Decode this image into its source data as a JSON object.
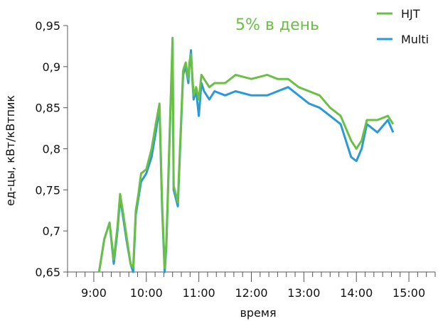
{
  "chart_data": {
    "type": "line",
    "annotation": "5% в день",
    "xlabel": "время",
    "ylabel": "ед-цы, кВт/кВтпик",
    "ylim": [
      0.65,
      0.95
    ],
    "xlim": [
      8.5,
      15.5
    ],
    "yticks": [
      {
        "value": 0.95,
        "label": "0,95"
      },
      {
        "value": 0.9,
        "label": "0,9"
      },
      {
        "value": 0.85,
        "label": "0,85"
      },
      {
        "value": 0.8,
        "label": "0,8"
      },
      {
        "value": 0.75,
        "label": "0,75"
      },
      {
        "value": 0.7,
        "label": "0,7"
      },
      {
        "value": 0.65,
        "label": "0,65"
      }
    ],
    "xticks": [
      {
        "value": 9,
        "label": "9:00"
      },
      {
        "value": 10,
        "label": "10:00"
      },
      {
        "value": 11,
        "label": "11:00"
      },
      {
        "value": 12,
        "label": "12:00"
      },
      {
        "value": 13,
        "label": "13:00"
      },
      {
        "value": 14,
        "label": "14:00"
      },
      {
        "value": 15,
        "label": "15:00"
      }
    ],
    "legend_position": "top-right",
    "series": [
      {
        "name": "Multi",
        "color": "#2a9ad6",
        "x": [
          9.1,
          9.2,
          9.3,
          9.38,
          9.45,
          9.5,
          9.55,
          9.62,
          9.7,
          9.75,
          9.8,
          9.85,
          9.9,
          10.0,
          10.1,
          10.18,
          10.25,
          10.3,
          10.35,
          10.38,
          10.5,
          10.52,
          10.6,
          10.7,
          10.75,
          10.8,
          10.82,
          10.85,
          10.88,
          10.9,
          10.95,
          11.0,
          11.05,
          11.1,
          11.2,
          11.3,
          11.5,
          11.7,
          12.0,
          12.3,
          12.5,
          12.7,
          12.9,
          13.1,
          13.3,
          13.5,
          13.7,
          13.9,
          14.0,
          14.1,
          14.2,
          14.4,
          14.6,
          14.7
        ],
        "y": [
          0.65,
          0.69,
          0.71,
          0.66,
          0.7,
          0.74,
          0.72,
          0.69,
          0.66,
          0.65,
          0.72,
          0.74,
          0.76,
          0.77,
          0.79,
          0.82,
          0.85,
          0.73,
          0.65,
          0.68,
          0.93,
          0.75,
          0.73,
          0.89,
          0.9,
          0.88,
          0.9,
          0.92,
          0.88,
          0.86,
          0.87,
          0.84,
          0.88,
          0.87,
          0.86,
          0.87,
          0.865,
          0.87,
          0.865,
          0.865,
          0.87,
          0.875,
          0.865,
          0.855,
          0.85,
          0.84,
          0.83,
          0.79,
          0.785,
          0.8,
          0.83,
          0.82,
          0.835,
          0.82
        ]
      },
      {
        "name": "HJT",
        "color": "#6abf45",
        "x": [
          9.1,
          9.2,
          9.3,
          9.38,
          9.45,
          9.5,
          9.55,
          9.62,
          9.7,
          9.75,
          9.8,
          9.85,
          9.9,
          10.0,
          10.1,
          10.18,
          10.25,
          10.3,
          10.35,
          10.38,
          10.5,
          10.52,
          10.6,
          10.7,
          10.75,
          10.8,
          10.82,
          10.85,
          10.88,
          10.9,
          10.95,
          11.0,
          11.05,
          11.1,
          11.2,
          11.3,
          11.5,
          11.7,
          12.0,
          12.3,
          12.5,
          12.7,
          12.9,
          13.1,
          13.3,
          13.5,
          13.7,
          13.9,
          14.0,
          14.1,
          14.2,
          14.4,
          14.6,
          14.7
        ],
        "y": [
          0.65,
          0.69,
          0.71,
          0.665,
          0.705,
          0.745,
          0.725,
          0.695,
          0.66,
          0.655,
          0.725,
          0.745,
          0.77,
          0.775,
          0.8,
          0.83,
          0.855,
          0.735,
          0.655,
          0.685,
          0.935,
          0.755,
          0.735,
          0.895,
          0.905,
          0.885,
          0.905,
          0.915,
          0.885,
          0.865,
          0.875,
          0.86,
          0.89,
          0.885,
          0.875,
          0.88,
          0.88,
          0.89,
          0.885,
          0.89,
          0.885,
          0.885,
          0.875,
          0.87,
          0.865,
          0.85,
          0.84,
          0.81,
          0.8,
          0.81,
          0.835,
          0.835,
          0.84,
          0.83
        ]
      }
    ]
  }
}
